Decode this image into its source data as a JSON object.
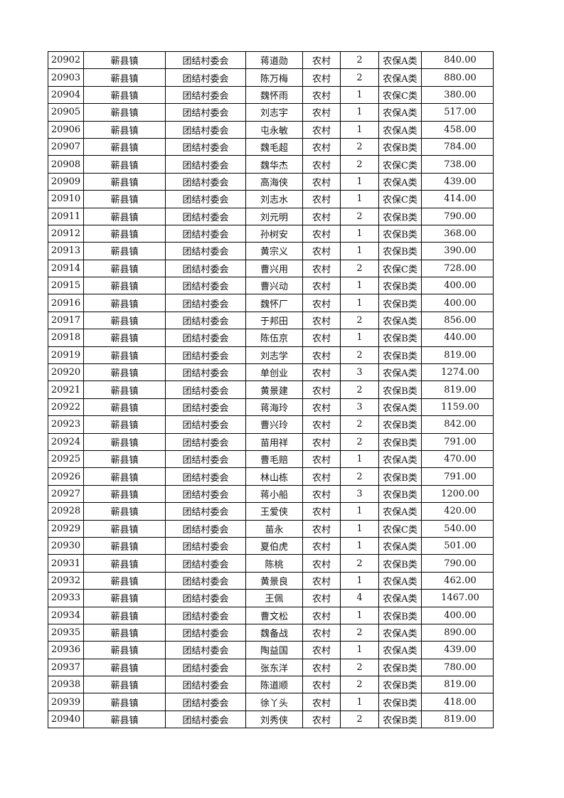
{
  "table": {
    "rows": [
      [
        "20902",
        "蕲县镇",
        "团结村委会",
        "蒋道勋",
        "农村",
        "2",
        "农保A类",
        "840.00"
      ],
      [
        "20903",
        "蕲县镇",
        "团结村委会",
        "陈万梅",
        "农村",
        "2",
        "农保A类",
        "880.00"
      ],
      [
        "20904",
        "蕲县镇",
        "团结村委会",
        "魏怀雨",
        "农村",
        "1",
        "农保C类",
        "380.00"
      ],
      [
        "20905",
        "蕲县镇",
        "团结村委会",
        "刘志宇",
        "农村",
        "1",
        "农保A类",
        "517.00"
      ],
      [
        "20906",
        "蕲县镇",
        "团结村委会",
        "屯永敏",
        "农村",
        "1",
        "农保A类",
        "458.00"
      ],
      [
        "20907",
        "蕲县镇",
        "团结村委会",
        "魏毛超",
        "农村",
        "2",
        "农保B类",
        "784.00"
      ],
      [
        "20908",
        "蕲县镇",
        "团结村委会",
        "魏华杰",
        "农村",
        "2",
        "农保C类",
        "738.00"
      ],
      [
        "20909",
        "蕲县镇",
        "团结村委会",
        "高海侠",
        "农村",
        "1",
        "农保A类",
        "439.00"
      ],
      [
        "20910",
        "蕲县镇",
        "团结村委会",
        "刘志水",
        "农村",
        "1",
        "农保C类",
        "414.00"
      ],
      [
        "20911",
        "蕲县镇",
        "团结村委会",
        "刘元明",
        "农村",
        "2",
        "农保B类",
        "790.00"
      ],
      [
        "20912",
        "蕲县镇",
        "团结村委会",
        "孙树安",
        "农村",
        "1",
        "农保B类",
        "368.00"
      ],
      [
        "20913",
        "蕲县镇",
        "团结村委会",
        "黄宗义",
        "农村",
        "1",
        "农保B类",
        "390.00"
      ],
      [
        "20914",
        "蕲县镇",
        "团结村委会",
        "曹兴用",
        "农村",
        "2",
        "农保C类",
        "728.00"
      ],
      [
        "20915",
        "蕲县镇",
        "团结村委会",
        "曹兴动",
        "农村",
        "1",
        "农保B类",
        "400.00"
      ],
      [
        "20916",
        "蕲县镇",
        "团结村委会",
        "魏怀厂",
        "农村",
        "1",
        "农保B类",
        "400.00"
      ],
      [
        "20917",
        "蕲县镇",
        "团结村委会",
        "于邦田",
        "农村",
        "2",
        "农保A类",
        "856.00"
      ],
      [
        "20918",
        "蕲县镇",
        "团结村委会",
        "陈伍京",
        "农村",
        "1",
        "农保B类",
        "440.00"
      ],
      [
        "20919",
        "蕲县镇",
        "团结村委会",
        "刘志学",
        "农村",
        "2",
        "农保B类",
        "819.00"
      ],
      [
        "20920",
        "蕲县镇",
        "团结村委会",
        "单创业",
        "农村",
        "3",
        "农保A类",
        "1274.00"
      ],
      [
        "20921",
        "蕲县镇",
        "团结村委会",
        "黄景建",
        "农村",
        "2",
        "农保B类",
        "819.00"
      ],
      [
        "20922",
        "蕲县镇",
        "团结村委会",
        "蒋海玲",
        "农村",
        "3",
        "农保A类",
        "1159.00"
      ],
      [
        "20923",
        "蕲县镇",
        "团结村委会",
        "曹兴玲",
        "农村",
        "2",
        "农保B类",
        "842.00"
      ],
      [
        "20924",
        "蕲县镇",
        "团结村委会",
        "苗用祥",
        "农村",
        "2",
        "农保B类",
        "791.00"
      ],
      [
        "20925",
        "蕲县镇",
        "团结村委会",
        "曹毛赔",
        "农村",
        "1",
        "农保A类",
        "470.00"
      ],
      [
        "20926",
        "蕲县镇",
        "团结村委会",
        "林山栋",
        "农村",
        "2",
        "农保B类",
        "791.00"
      ],
      [
        "20927",
        "蕲县镇",
        "团结村委会",
        "蒋小船",
        "农村",
        "3",
        "农保B类",
        "1200.00"
      ],
      [
        "20928",
        "蕲县镇",
        "团结村委会",
        "王爱侠",
        "农村",
        "1",
        "农保A类",
        "420.00"
      ],
      [
        "20929",
        "蕲县镇",
        "团结村委会",
        "苗永",
        "农村",
        "1",
        "农保C类",
        "540.00"
      ],
      [
        "20930",
        "蕲县镇",
        "团结村委会",
        "夏伯虎",
        "农村",
        "1",
        "农保A类",
        "501.00"
      ],
      [
        "20931",
        "蕲县镇",
        "团结村委会",
        "陈桃",
        "农村",
        "2",
        "农保B类",
        "790.00"
      ],
      [
        "20932",
        "蕲县镇",
        "团结村委会",
        "黄景良",
        "农村",
        "1",
        "农保A类",
        "462.00"
      ],
      [
        "20933",
        "蕲县镇",
        "团结村委会",
        "王佩",
        "农村",
        "4",
        "农保A类",
        "1467.00"
      ],
      [
        "20934",
        "蕲县镇",
        "团结村委会",
        "曹文松",
        "农村",
        "1",
        "农保B类",
        "400.00"
      ],
      [
        "20935",
        "蕲县镇",
        "团结村委会",
        "魏备战",
        "农村",
        "2",
        "农保A类",
        "890.00"
      ],
      [
        "20936",
        "蕲县镇",
        "团结村委会",
        "陶益国",
        "农村",
        "1",
        "农保A类",
        "439.00"
      ],
      [
        "20937",
        "蕲县镇",
        "团结村委会",
        "张东洋",
        "农村",
        "2",
        "农保B类",
        "780.00"
      ],
      [
        "20938",
        "蕲县镇",
        "团结村委会",
        "陈道顺",
        "农村",
        "2",
        "农保B类",
        "819.00"
      ],
      [
        "20939",
        "蕲县镇",
        "团结村委会",
        "徐丫头",
        "农村",
        "1",
        "农保B类",
        "418.00"
      ],
      [
        "20940",
        "蕲县镇",
        "团结村委会",
        "刘秀侠",
        "农村",
        "2",
        "农保B类",
        "819.00"
      ]
    ]
  }
}
